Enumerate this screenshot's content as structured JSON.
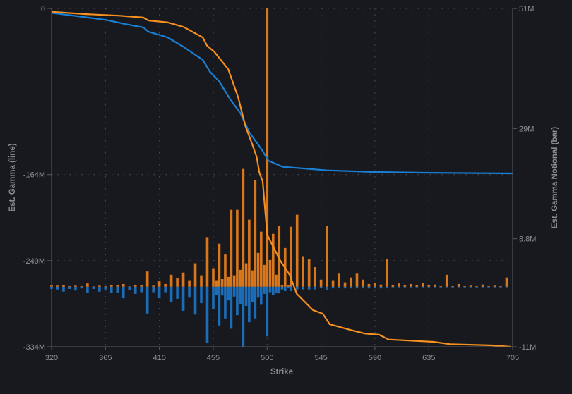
{
  "chart_data": {
    "type": "bar+line",
    "xlabel": "Strike",
    "ylabel_left": "Est. Gamma (line)",
    "ylabel_right": "Est. Gamma Notional (bar)",
    "xlim": [
      320,
      705
    ],
    "x_ticks": [
      320,
      365,
      410,
      455,
      500,
      545,
      590,
      635,
      705
    ],
    "ylim_left": [
      -334,
      0
    ],
    "y_ticks_left": [
      {
        "value": 0,
        "label": "0"
      },
      {
        "value": -164,
        "label": "-164M"
      },
      {
        "value": -249,
        "label": "-249M"
      },
      {
        "value": -334,
        "label": "-334M"
      }
    ],
    "ylim_right": [
      -11,
      51
    ],
    "y_ticks_right": [
      {
        "value": 51,
        "label": "51M"
      },
      {
        "value": 29,
        "label": "29M"
      },
      {
        "value": 8.8,
        "label": "8.8M"
      },
      {
        "value": -11,
        "label": "-11M"
      }
    ],
    "grid": true,
    "colors": {
      "background": "#17191e",
      "orange_line": "#f7901e",
      "blue_line": "#1a80d6",
      "orange_bar": "#d9771c",
      "blue_bar": "#1c6db8",
      "axis": "#5a5c62",
      "grid": "#4a4c52"
    },
    "bars": {
      "strikes": [
        320,
        325,
        330,
        335,
        340,
        345,
        350,
        355,
        360,
        365,
        370,
        375,
        380,
        385,
        390,
        395,
        400,
        405,
        410,
        415,
        420,
        425,
        430,
        435,
        440,
        445,
        450,
        455,
        457.5,
        460,
        462.5,
        465,
        467.5,
        470,
        472.5,
        475,
        477.5,
        480,
        482.5,
        485,
        487.5,
        490,
        492.5,
        495,
        497.5,
        500,
        502.5,
        505,
        507.5,
        510,
        512.5,
        515,
        517.5,
        520,
        525,
        530,
        535,
        540,
        545,
        550,
        555,
        560,
        565,
        570,
        575,
        580,
        585,
        590,
        595,
        600,
        605,
        610,
        615,
        620,
        625,
        630,
        635,
        640,
        645,
        650,
        655,
        660,
        665,
        670,
        675,
        680,
        685,
        690,
        695,
        700
      ],
      "orange": [
        0.3,
        0.2,
        0.3,
        0.1,
        0.2,
        0.1,
        0.6,
        0.05,
        0.2,
        0.1,
        0.3,
        0.3,
        0.5,
        0.05,
        0.3,
        0.3,
        2.8,
        0.2,
        1.0,
        0.5,
        2.2,
        1.6,
        2.6,
        1.2,
        4.3,
        2.1,
        9.1,
        3.4,
        1.2,
        7.9,
        1.4,
        5.9,
        1.8,
        14.1,
        2.1,
        14.1,
        3.1,
        21.6,
        4.3,
        12.3,
        3.0,
        19.6,
        6.2,
        10.1,
        4.0,
        51,
        4.9,
        9.7,
        2.2,
        11.2,
        0.3,
        7.1,
        0.3,
        11.0,
        13.2,
        5.6,
        5.0,
        3.6,
        1.3,
        11.2,
        1.2,
        2.4,
        0.8,
        1.7,
        2.4,
        1.3,
        0.5,
        0.7,
        0.4,
        5.1,
        0.3,
        0.6,
        0.3,
        0.5,
        0.3,
        0.7,
        0.3,
        0.4,
        0.1,
        2.2,
        0.1,
        0.5,
        0.1,
        0.2,
        0.1,
        0.4,
        0.1,
        0.2,
        0.1,
        1.7
      ],
      "blue": [
        -0.4,
        -0.5,
        -0.9,
        -0.4,
        -0.7,
        -0.3,
        -1.1,
        -0.4,
        -0.9,
        -0.5,
        -1.1,
        -1.1,
        -2.1,
        -0.6,
        -1.3,
        -1.0,
        -4.9,
        -1.0,
        -2.1,
        -1.0,
        -2.8,
        -2.2,
        -4.4,
        -2.0,
        -5.1,
        -3.0,
        -10.3,
        -4.1,
        -1.5,
        -7.1,
        -1.6,
        -5.8,
        -2.5,
        -7.7,
        -1.8,
        -5.2,
        -3.2,
        -11.1,
        -3.5,
        -6.5,
        -2.8,
        -5.8,
        -2.0,
        -3.3,
        -1.3,
        -9.1,
        -1.0,
        -1.5,
        -1.2,
        -1.2,
        -0.5,
        -0.8,
        -0.3,
        -0.8,
        -0.5,
        -0.5,
        -0.5,
        -0.5,
        -0.2,
        -0.6,
        -0.3,
        -0.3,
        -0.3,
        -0.3,
        -0.3,
        -0.3,
        -0.3,
        -0.3,
        -0.3,
        -0.3,
        -0.1,
        -0.1,
        -0.1,
        -0.1,
        -0.1,
        -0.1,
        -0.1,
        -0.1,
        -0.1,
        -0.1,
        -0.1,
        -0.1,
        -0.1,
        -0.1,
        -0.1,
        -0.1,
        -0.1,
        -0.1,
        -0.1,
        -0.1
      ]
    },
    "lines": [
      {
        "color": "blue",
        "axis": "left",
        "x": [
          320,
          343.6,
          365.4,
          381.4,
          396.7,
          400.8,
          416.8,
          430.3,
          446.3,
          452.2,
          459.8,
          469.9,
          477.5,
          485.2,
          495.2,
          501.1,
          512.9,
          550,
          589.6,
          629.1,
          705
        ],
        "y": [
          -4.4,
          -7.9,
          -11.3,
          -15.4,
          -18.7,
          -22.9,
          -28.5,
          -38,
          -50.8,
          -62.4,
          -71.7,
          -91.1,
          -102.9,
          -122.4,
          -138.9,
          -150.3,
          -156.3,
          -159.8,
          -161.4,
          -162.1,
          -162.8
        ]
      },
      {
        "color": "orange",
        "axis": "left",
        "x": [
          320,
          347.7,
          377.2,
          396.7,
          400.8,
          416.8,
          430.3,
          446.3,
          449.8,
          455.7,
          467.5,
          475.8,
          481.7,
          487.6,
          491.3,
          493.5,
          496.2,
          500.1,
          511,
          518.8,
          524.7,
          538.3,
          546.4,
          552.3,
          570,
          581.7,
          593.5,
          601.4,
          638.8,
          652.6,
          688,
          703.6
        ],
        "y": [
          -3.3,
          -5.6,
          -7.2,
          -9.0,
          -11.8,
          -13.7,
          -18.3,
          -28.7,
          -36.8,
          -42.6,
          -60.0,
          -87.9,
          -115.7,
          -134.3,
          -146.7,
          -162.1,
          -170.5,
          -223.6,
          -249.1,
          -263,
          -281.6,
          -297.8,
          -301.3,
          -311.8,
          -317.5,
          -321,
          -322.1,
          -326.8,
          -329.1,
          -331.4,
          -332.6,
          -334
        ]
      }
    ]
  }
}
